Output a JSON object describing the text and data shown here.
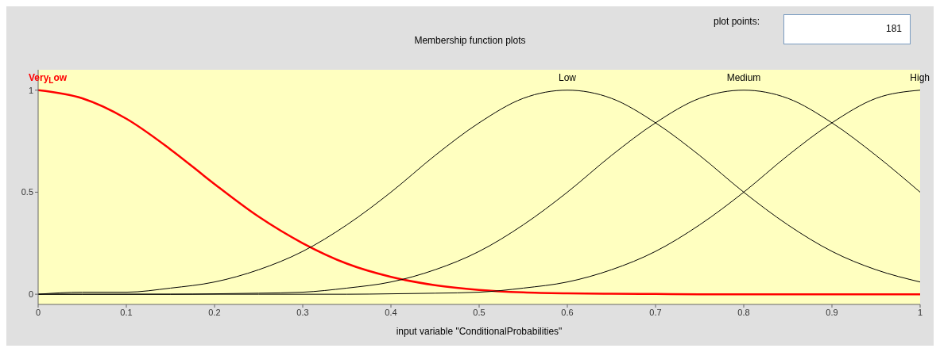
{
  "chart_data": {
    "type": "line",
    "title": "Membership function plots",
    "xlabel": "input variable \"ConditionalProbabilities\"",
    "annotations": [
      "plot points:",
      "181"
    ],
    "x": [
      0,
      0.05,
      0.1,
      0.15,
      0.2,
      0.25,
      0.3,
      0.35,
      0.4,
      0.45,
      0.5,
      0.55,
      0.6,
      0.65,
      0.7,
      0.75,
      0.8,
      0.85,
      0.9,
      0.95,
      1
    ],
    "series": [
      {
        "name": "Very$_{L}$ow",
        "color": "#ff0000",
        "values": [
          1,
          0.96,
          0.86,
          0.71,
          0.54,
          0.38,
          0.25,
          0.15,
          0.085,
          0.044,
          0.021,
          0.009,
          0.004,
          0.002,
          0.001,
          0,
          0,
          0,
          0,
          0,
          0
        ]
      },
      {
        "name": "Low",
        "color": "#000000",
        "values": [
          0,
          0.01,
          0.01,
          0.03,
          0.06,
          0.12,
          0.21,
          0.34,
          0.5,
          0.68,
          0.84,
          0.96,
          1,
          0.96,
          0.84,
          0.68,
          0.5,
          0.34,
          0.21,
          0.12,
          0.06
        ]
      },
      {
        "name": "Medium",
        "color": "#000000",
        "values": [
          0,
          0,
          0,
          0,
          0.002,
          0.005,
          0.01,
          0.03,
          0.06,
          0.12,
          0.21,
          0.34,
          0.5,
          0.68,
          0.84,
          0.96,
          1,
          0.96,
          0.84,
          0.68,
          0.5
        ]
      },
      {
        "name": "High",
        "color": "#000000",
        "values": [
          0,
          0,
          0,
          0,
          0,
          0,
          0,
          0,
          0.002,
          0.005,
          0.01,
          0.03,
          0.06,
          0.12,
          0.21,
          0.34,
          0.5,
          0.68,
          0.84,
          0.96,
          1
        ]
      }
    ],
    "xlim": [
      0,
      1
    ],
    "xticks": [
      0,
      0.1,
      0.2,
      0.3,
      0.4,
      0.5,
      0.6,
      0.7,
      0.8,
      0.9,
      1
    ],
    "ylim": [
      -0.05,
      1.1
    ],
    "yticks": [
      0,
      0.5,
      1
    ],
    "grid": false,
    "legend": false,
    "marker": "none",
    "line_style": "solid"
  }
}
